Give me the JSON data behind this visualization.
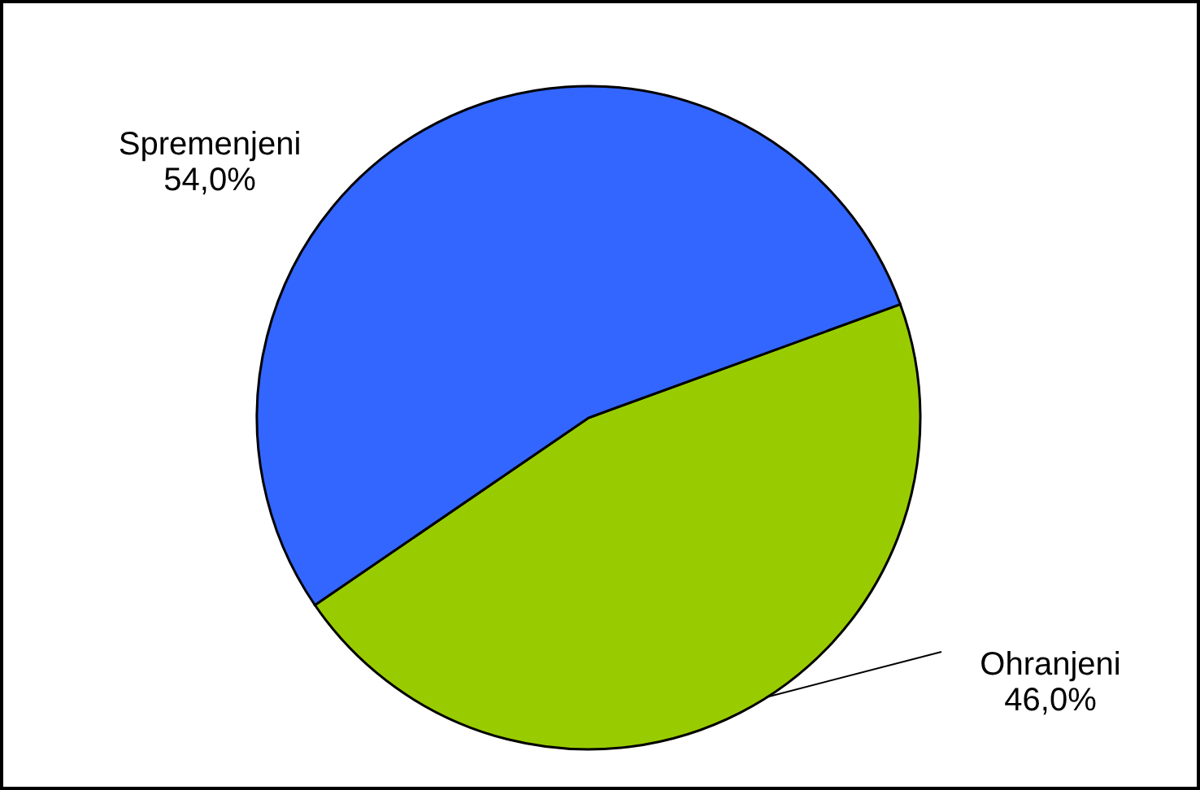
{
  "chart_data": {
    "type": "pie",
    "categories": [
      "Ohranjeni",
      "Spremenjeni"
    ],
    "values": [
      46.0,
      54.0
    ],
    "colors": [
      "#99cc00",
      "#3366ff"
    ],
    "value_labels": [
      "46,0%",
      "54,0%"
    ]
  }
}
